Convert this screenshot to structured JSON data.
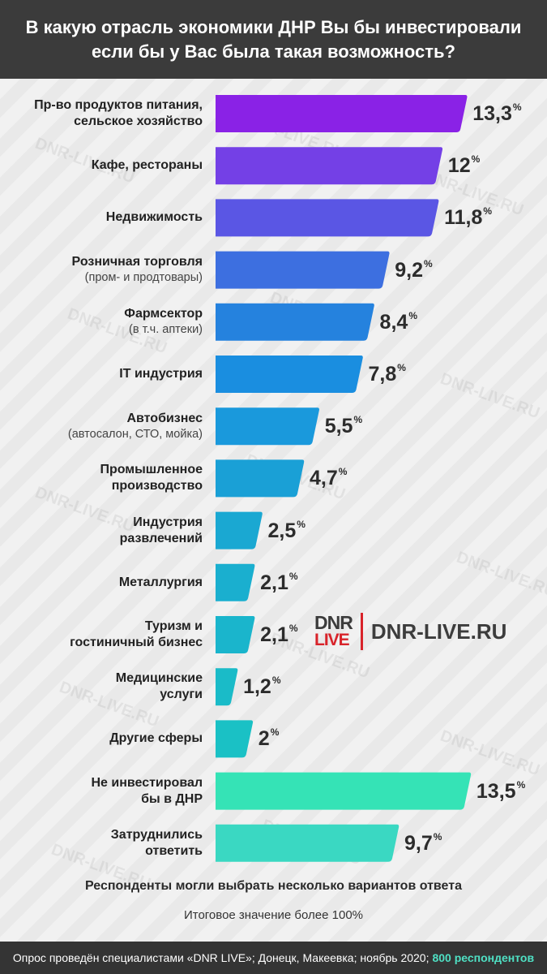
{
  "header": {
    "title_line1": "В какую отрасль экономики ДНР Вы бы инвестировали",
    "title_line2": "если бы у Вас была такая возможность?"
  },
  "chart_data": {
    "type": "bar",
    "orientation": "horizontal",
    "title": "В какую отрасль экономики ДНР Вы бы инвестировали если бы у Вас была такая возможность?",
    "unit": "%",
    "categories": [
      "Пр-во продуктов питания, сельское хозяйство",
      "Кафе, рестораны",
      "Недвижимость",
      "Розничная торговля (пром- и продтовары)",
      "Фармсектор (в т.ч. аптеки)",
      "IT индустрия",
      "Автобизнес (автосалон, СТО, мойка)",
      "Промышленное производство",
      "Индустрия развлечений",
      "Металлургия",
      "Туризм и гостиничный бизнес",
      "Медицинские услуги",
      "Другие сферы",
      "Не инвестировал бы в ДНР",
      "Затруднились ответить"
    ],
    "values": [
      13.3,
      12,
      11.8,
      9.2,
      8.4,
      7.8,
      5.5,
      4.7,
      2.5,
      2.1,
      2.1,
      1.2,
      2,
      13.5,
      9.7
    ],
    "items": [
      {
        "line1": "Пр-во продуктов питания,",
        "line2": "сельское хозяйство",
        "sub": false,
        "value": 13.3,
        "value_label": "13,3",
        "color": "#8a22e6"
      },
      {
        "line1": "Кафе, рестораны",
        "line2": "",
        "sub": false,
        "value": 12,
        "value_label": "12",
        "color": "#7440e6"
      },
      {
        "line1": "Недвижимость",
        "line2": "",
        "sub": false,
        "value": 11.8,
        "value_label": "11,8",
        "color": "#5a56e4"
      },
      {
        "line1": "Розничная торговля",
        "line2": "(пром- и продтовары)",
        "sub": true,
        "value": 9.2,
        "value_label": "9,2",
        "color": "#3d6fe0"
      },
      {
        "line1": "Фармсектор",
        "line2": "(в т.ч. аптеки)",
        "sub": true,
        "value": 8.4,
        "value_label": "8,4",
        "color": "#2582de"
      },
      {
        "line1": "IT индустрия",
        "line2": "",
        "sub": false,
        "value": 7.8,
        "value_label": "7,8",
        "color": "#1a8ee0"
      },
      {
        "line1": "Автобизнес",
        "line2": "(автосалон, СТО, мойка)",
        "sub": true,
        "value": 5.5,
        "value_label": "5,5",
        "color": "#1a99dc"
      },
      {
        "line1": "Промышленное",
        "line2": "производство",
        "sub": false,
        "value": 4.7,
        "value_label": "4,7",
        "color": "#1aa0d6"
      },
      {
        "line1": "Индустрия",
        "line2": "развлечений",
        "sub": false,
        "value": 2.5,
        "value_label": "2,5",
        "color": "#1aa8d2"
      },
      {
        "line1": "Металлургия",
        "line2": "",
        "sub": false,
        "value": 2.1,
        "value_label": "2,1",
        "color": "#1aafcf"
      },
      {
        "line1": "Туризм и",
        "line2": "гостиничный бизнес",
        "sub": false,
        "value": 2.1,
        "value_label": "2,1",
        "color": "#1ab5cc"
      },
      {
        "line1": "Медицинские",
        "line2": "услуги",
        "sub": false,
        "value": 1.2,
        "value_label": "1,2",
        "color": "#1abbc8"
      },
      {
        "line1": "Другие сферы",
        "line2": "",
        "sub": false,
        "value": 2,
        "value_label": "2",
        "color": "#1ac1c5"
      },
      {
        "line1": "Не инвестировал",
        "line2": "бы в ДНР",
        "sub": false,
        "value": 13.5,
        "value_label": "13,5",
        "color": "#35e3b6"
      },
      {
        "line1": "Затруднились",
        "line2": "ответить",
        "sub": false,
        "value": 9.7,
        "value_label": "9,7",
        "color": "#3ad8c2"
      }
    ]
  },
  "logo": {
    "mark_top": "DNR",
    "mark_bottom": "LIVE",
    "site": "DNR-LIVE.RU"
  },
  "watermark": "DNR-LIVE.RU",
  "notes": {
    "line1": "Респонденты могли выбрать несколько вариантов ответа",
    "line2": "Итоговое значение более 100%"
  },
  "footer": {
    "text": "Опрос проведён специалистами «DNR LIVE»; Донецк, Макеевка; ноябрь 2020;",
    "highlight": "800 респондентов"
  }
}
